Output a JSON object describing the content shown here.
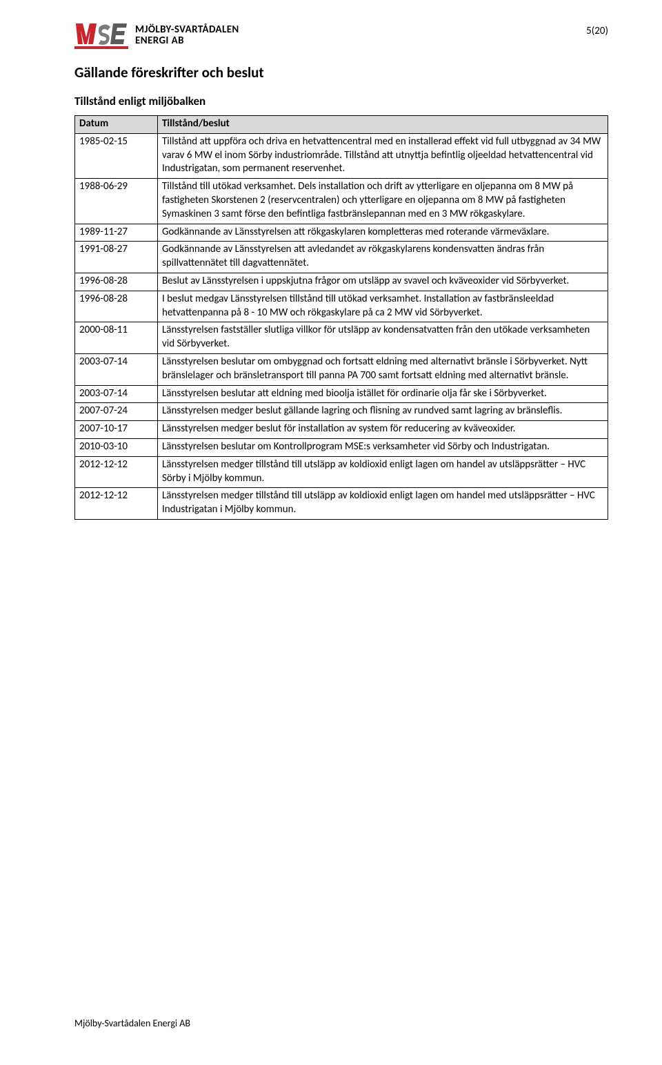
{
  "brand": {
    "top_line": "MJÖLBY-SVARTÅDALEN",
    "bottom_line": "ENERGI AB",
    "logo_letters": "MSE",
    "m_color": "#c9252c",
    "s_color": "#7b7b7b",
    "e_color": "#5b5b5b",
    "stroke_color": "#c9252c"
  },
  "page_number": "5(20)",
  "section_title": "Gällande föreskrifter och beslut",
  "sub_title": "Tillstånd enligt miljöbalken",
  "table": {
    "head": {
      "date": "Datum",
      "desc": "Tillstånd/beslut"
    },
    "rows": [
      {
        "date": "1985-02-15",
        "desc": "Tillstånd att uppföra och driva en hetvattencentral med en installerad effekt vid full utbyggnad av 34 MW varav 6 MW el inom Sörby industriområde. Tillstånd att utnyttja befintlig oljeeldad hetvattencentral vid Industrigatan, som permanent reservenhet."
      },
      {
        "date": "1988-06-29",
        "desc": "Tillstånd till utökad verksamhet. Dels installation och drift av ytterligare en oljepanna om 8 MW på fastigheten Skorstenen 2 (reservcentralen) och ytterligare en oljepanna om 8 MW på fastigheten Symaskinen 3 samt förse den befintliga fastbränslepannan med en 3 MW rökgaskylare."
      },
      {
        "date": "1989-11-27",
        "desc": "Godkännande av Länsstyrelsen att rökgaskylaren kompletteras med roterande värmeväxlare."
      },
      {
        "date": "1991-08-27",
        "desc": "Godkännande av Länsstyrelsen att avledandet av rökgaskylarens kondensvatten ändras från spillvattennätet till dagvattennätet."
      },
      {
        "date": "1996-08-28",
        "desc": "Beslut av Länsstyrelsen i uppskjutna frågor om utsläpp av svavel och kväveoxider vid Sörbyverket."
      },
      {
        "date": "1996-08-28",
        "desc": "I beslut medgav Länsstyrelsen tillstånd till utökad verksamhet. Installation av fastbränsleeldad hetvattenpanna på 8 - 10 MW och rökgaskylare på ca 2 MW vid Sörbyverket."
      },
      {
        "date": "2000-08-11",
        "desc": "Länsstyrelsen fastställer slutliga villkor för utsläpp av kondensatvatten från den utökade verksamheten vid Sörbyverket."
      },
      {
        "date": "2003-07-14",
        "desc": "Länsstyrelsen beslutar om ombyggnad och fortsatt eldning med alternativt bränsle i Sörbyverket. Nytt bränslelager och bränsletransport till panna PA 700 samt fortsatt eldning med alternativt bränsle."
      },
      {
        "date": "2003-07-14",
        "desc": "Länsstyrelsen beslutar att eldning med bioolja istället för ordinarie olja får ske i Sörbyverket."
      },
      {
        "date": "2007-07-24",
        "desc": "Länsstyrelsen medger beslut gällande lagring och flisning av rundved samt lagring av bränsleflis."
      },
      {
        "date": "2007-10-17",
        "desc": "Länsstyrelsen medger beslut för installation av system för reducering av kväveoxider."
      },
      {
        "date": "2010-03-10",
        "desc": "Länsstyrelsen beslutar om Kontrollprogram MSE:s verksamheter vid Sörby och Industrigatan."
      },
      {
        "date": "2012-12-12",
        "desc": "Länsstyrelsen medger tillstånd till utsläpp av koldioxid enligt lagen om handel av utsläppsrätter – HVC Sörby i Mjölby kommun."
      },
      {
        "date": "2012-12-12",
        "desc": "Länsstyrelsen medger tillstånd till utsläpp av koldioxid enligt lagen om handel med utsläppsrätter – HVC Industrigatan i Mjölby kommun."
      }
    ]
  },
  "footer": "Mjölby-Svartådalen Energi AB",
  "colors": {
    "table_header_bg": "#d9d9d9",
    "border": "#000000",
    "text": "#000000",
    "background": "#ffffff"
  }
}
